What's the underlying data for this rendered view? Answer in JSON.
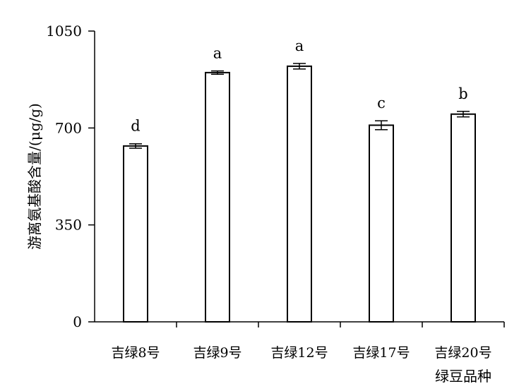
{
  "chart_data": {
    "type": "bar",
    "categories": [
      "吉绿8号",
      "吉绿9号",
      "吉绿12号",
      "吉绿17号",
      "吉绿20号"
    ],
    "values": [
      635,
      900,
      923,
      710,
      750
    ],
    "errors": [
      8,
      6,
      10,
      16,
      10
    ],
    "significance": [
      "d",
      "a",
      "a",
      "c",
      "b"
    ],
    "xlabel": "绿豆品种",
    "ylabel": "游离氨基酸含量/(μg/g)",
    "ylim": [
      0,
      1050
    ],
    "yticks": [
      0,
      350,
      700,
      1050
    ],
    "grid": false,
    "bar_fill": "#ffffff",
    "bar_stroke": "#000000"
  }
}
